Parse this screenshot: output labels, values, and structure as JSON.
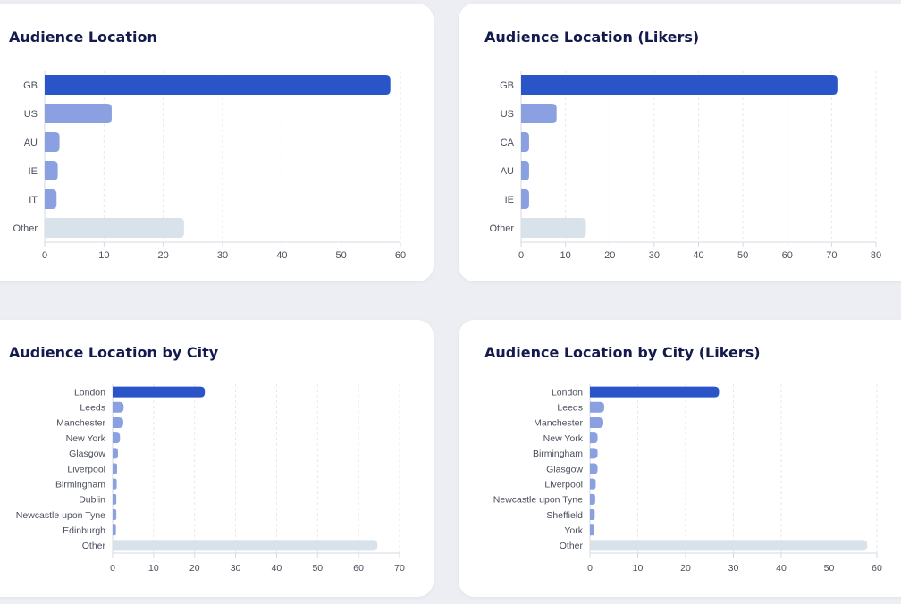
{
  "chart_data": [
    {
      "type": "bar",
      "orientation": "horizontal",
      "title": "Audience Location",
      "categories": [
        "GB",
        "US",
        "AU",
        "IE",
        "IT",
        "Other"
      ],
      "values": [
        58.3,
        11.3,
        2.5,
        2.2,
        2.0,
        23.5
      ],
      "xlim": [
        0,
        60
      ],
      "xticks": [
        0,
        10,
        20,
        30,
        40,
        50,
        60
      ],
      "grid": "vertical-dashed",
      "legend": "none",
      "colors": {
        "primary": "#2a55c8",
        "secondary": "#8aa0e0",
        "other": "#d7e2ea"
      }
    },
    {
      "type": "bar",
      "orientation": "horizontal",
      "title": "Audience Location (Likers)",
      "categories": [
        "GB",
        "US",
        "CA",
        "AU",
        "IE",
        "Other"
      ],
      "values": [
        71.3,
        8.0,
        1.8,
        1.8,
        1.8,
        14.6
      ],
      "xlim": [
        0,
        80
      ],
      "xticks": [
        0,
        10,
        20,
        30,
        40,
        50,
        60,
        70,
        80
      ],
      "grid": "vertical-dashed",
      "legend": "none",
      "colors": {
        "primary": "#2a55c8",
        "secondary": "#8aa0e0",
        "other": "#d7e2ea"
      }
    },
    {
      "type": "bar",
      "orientation": "horizontal",
      "title": "Audience Location by City",
      "categories": [
        "London",
        "Leeds",
        "Manchester",
        "New York",
        "Glasgow",
        "Liverpool",
        "Birmingham",
        "Dublin",
        "Newcastle upon Tyne",
        "Edinburgh",
        "Other"
      ],
      "values": [
        22.5,
        2.7,
        2.6,
        1.8,
        1.3,
        1.1,
        1.0,
        0.9,
        0.9,
        0.8,
        64.6
      ],
      "xlim": [
        0,
        70
      ],
      "xticks": [
        0,
        10,
        20,
        30,
        40,
        50,
        60,
        70
      ],
      "grid": "vertical-dashed",
      "legend": "none",
      "colors": {
        "primary": "#2a55c8",
        "secondary": "#8aa0e0",
        "other": "#d7e2ea"
      }
    },
    {
      "type": "bar",
      "orientation": "horizontal",
      "title": "Audience Location by City (Likers)",
      "categories": [
        "London",
        "Leeds",
        "Manchester",
        "New York",
        "Birmingham",
        "Glasgow",
        "Liverpool",
        "Newcastle upon Tyne",
        "Sheffield",
        "York",
        "Other"
      ],
      "values": [
        27.0,
        3.0,
        2.8,
        1.6,
        1.6,
        1.6,
        1.2,
        1.1,
        1.0,
        0.9,
        58.0
      ],
      "xlim": [
        0,
        60
      ],
      "xticks": [
        0,
        10,
        20,
        30,
        40,
        50,
        60
      ],
      "grid": "vertical-dashed",
      "legend": "none",
      "colors": {
        "primary": "#2a55c8",
        "secondary": "#8aa0e0",
        "other": "#d7e2ea"
      }
    }
  ]
}
